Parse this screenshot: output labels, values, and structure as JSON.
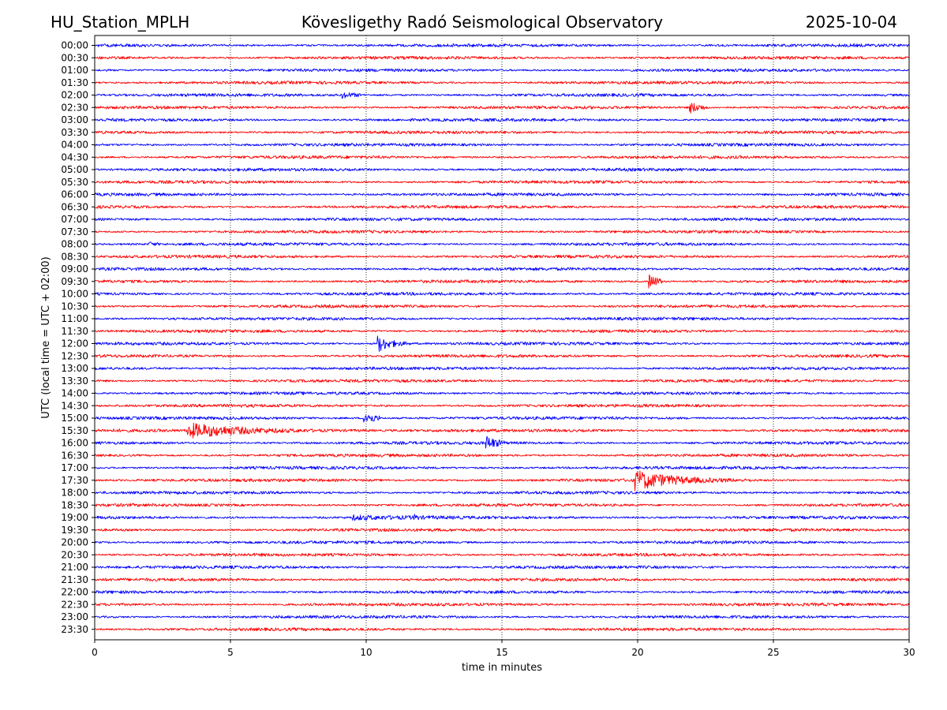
{
  "header": {
    "station": "HU_Station_MPLH",
    "observatory": "Kövesligethy Radó Seismological Observatory",
    "date": "2025-10-04"
  },
  "chart_data": {
    "type": "line",
    "title": "Kövesligethy Radó Seismological Observatory",
    "xlabel": "time in minutes",
    "ylabel": "UTC (local time = UTC + 02:00)",
    "xlim": [
      0,
      30
    ],
    "xticks": [
      "0",
      "5",
      "10",
      "15",
      "20",
      "25",
      "30"
    ],
    "grid": "vertical dotted lines at x ticks",
    "colors": {
      "even_rows": "#0000ff",
      "odd_rows": "#ff0000"
    },
    "rows": [
      "00:00",
      "00:30",
      "01:00",
      "01:30",
      "02:00",
      "02:30",
      "03:00",
      "03:30",
      "04:00",
      "04:30",
      "05:00",
      "05:30",
      "06:00",
      "06:30",
      "07:00",
      "07:30",
      "08:00",
      "08:30",
      "09:00",
      "09:30",
      "10:00",
      "10:30",
      "11:00",
      "11:30",
      "12:00",
      "12:30",
      "13:00",
      "13:30",
      "14:00",
      "14:30",
      "15:00",
      "15:30",
      "16:00",
      "16:30",
      "17:00",
      "17:30",
      "18:00",
      "18:30",
      "19:00",
      "19:30",
      "20:00",
      "20:30",
      "21:00",
      "21:30",
      "22:00",
      "22:30",
      "23:00",
      "23:30"
    ],
    "events": [
      {
        "row": "02:00",
        "start_min": 9.1,
        "end_min": 9.8,
        "peak_amplitude": 3.5,
        "decay_min": 0.5
      },
      {
        "row": "02:30",
        "start_min": 21.9,
        "end_min": 22.6,
        "peak_amplitude": 7.5,
        "decay_min": 0.4
      },
      {
        "row": "08:00",
        "start_min": 2.0,
        "end_min": 2.4,
        "peak_amplitude": 2.5,
        "decay_min": 0.2
      },
      {
        "row": "09:30",
        "start_min": 20.4,
        "end_min": 20.9,
        "peak_amplitude": 9.0,
        "decay_min": 0.4
      },
      {
        "row": "12:00",
        "start_min": 10.4,
        "end_min": 11.6,
        "peak_amplitude": 11.0,
        "decay_min": 0.5
      },
      {
        "row": "15:00",
        "start_min": 9.9,
        "end_min": 10.5,
        "peak_amplitude": 9.5,
        "decay_min": 0.4
      },
      {
        "row": "15:30",
        "start_min": 3.4,
        "end_min": 10.3,
        "peak_amplitude": 9.0,
        "decay_min": 2.2
      },
      {
        "row": "16:00",
        "start_min": 14.4,
        "end_min": 15.1,
        "peak_amplitude": 8.5,
        "decay_min": 0.4
      },
      {
        "row": "17:30",
        "start_min": 19.9,
        "end_min": 24.2,
        "peak_amplitude": 12.0,
        "decay_min": 1.3
      },
      {
        "row": "19:00",
        "start_min": 9.5,
        "end_min": 13.5,
        "peak_amplitude": 2.5,
        "decay_min": 1.5
      },
      {
        "row": "19:00",
        "start_min": 11.75,
        "end_min": 11.95,
        "peak_amplitude": 3.5,
        "decay_min": 0.1
      }
    ]
  }
}
